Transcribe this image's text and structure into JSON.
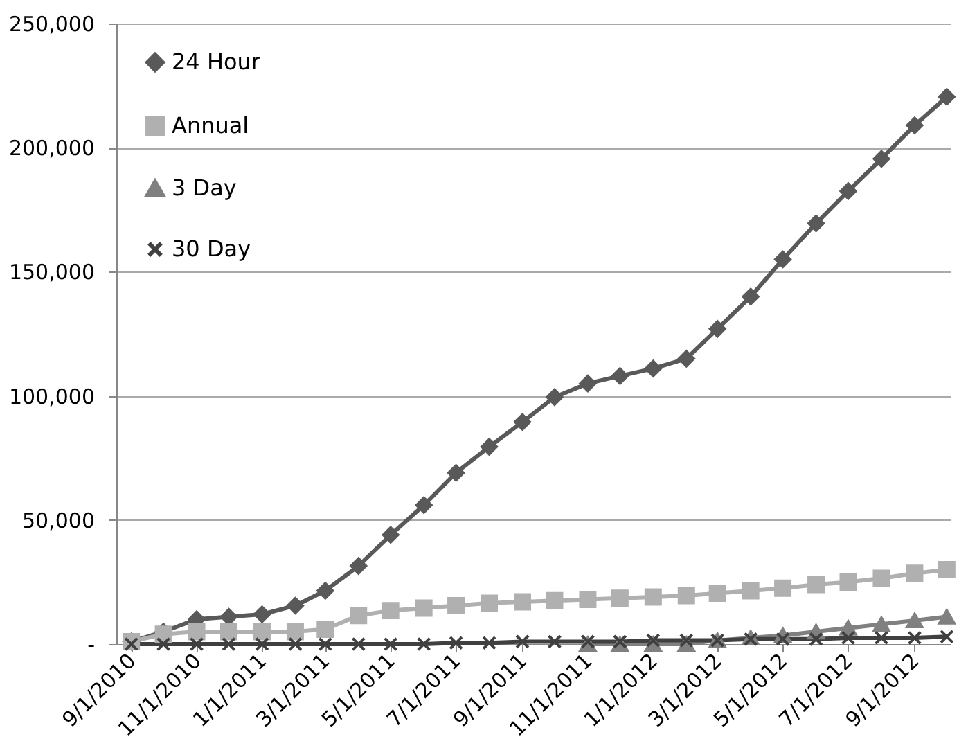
{
  "chart_data": {
    "type": "line",
    "x": [
      "2010-09",
      "2010-10",
      "2010-11",
      "2010-12",
      "2011-01",
      "2011-02",
      "2011-03",
      "2011-04",
      "2011-05",
      "2011-06",
      "2011-07",
      "2011-08",
      "2011-09",
      "2011-10",
      "2011-11",
      "2011-12",
      "2012-01",
      "2012-02",
      "2012-03",
      "2012-04",
      "2012-05",
      "2012-06",
      "2012-07",
      "2012-08",
      "2012-09",
      "2012-10"
    ],
    "series": [
      {
        "name": "24 Hour",
        "color": "#595959",
        "marker": "diamond",
        "values": [
          1000,
          5000,
          10000,
          11000,
          12000,
          15500,
          21500,
          31500,
          44000,
          56000,
          69000,
          79500,
          89500,
          99500,
          105000,
          108000,
          111000,
          115000,
          127000,
          140000,
          155000,
          169500,
          182500,
          195500,
          209000,
          220500
        ]
      },
      {
        "name": "Annual",
        "color": "#b0b0b0",
        "marker": "square",
        "values": [
          1000,
          4000,
          5000,
          5000,
          5000,
          5000,
          6000,
          11500,
          13500,
          14500,
          15500,
          16500,
          17000,
          17500,
          18000,
          18500,
          19000,
          19500,
          20500,
          21500,
          22500,
          24000,
          25000,
          26500,
          28500,
          30000
        ]
      },
      {
        "name": "3 Day",
        "color": "#808080",
        "marker": "triangle",
        "values": [
          null,
          null,
          null,
          null,
          null,
          null,
          null,
          null,
          null,
          null,
          null,
          null,
          null,
          null,
          0,
          0,
          0,
          0,
          1500,
          2500,
          3500,
          5000,
          6500,
          8000,
          9500,
          11000
        ]
      },
      {
        "name": "30 Day",
        "color": "#404040",
        "marker": "cross",
        "values": [
          0,
          0,
          0,
          0,
          0,
          0,
          0,
          0,
          0,
          0,
          500,
          500,
          1000,
          1000,
          1000,
          1000,
          1500,
          1500,
          1500,
          2000,
          2000,
          2000,
          2500,
          2500,
          2500,
          3000
        ]
      }
    ],
    "xlim": [
      "2010-08-18",
      "2012-10-04"
    ],
    "xticks": [
      {
        "value": "2010-09",
        "label": "9/1/2010"
      },
      {
        "value": "2010-11",
        "label": "11/1/2010"
      },
      {
        "value": "2011-01",
        "label": "1/1/2011"
      },
      {
        "value": "2011-03",
        "label": "3/1/2011"
      },
      {
        "value": "2011-05",
        "label": "5/1/2011"
      },
      {
        "value": "2011-07",
        "label": "7/1/2011"
      },
      {
        "value": "2011-09",
        "label": "9/1/2011"
      },
      {
        "value": "2011-11",
        "label": "11/1/2011"
      },
      {
        "value": "2012-01",
        "label": "1/1/2012"
      },
      {
        "value": "2012-03",
        "label": "3/1/2012"
      },
      {
        "value": "2012-05",
        "label": "5/1/2012"
      },
      {
        "value": "2012-07",
        "label": "7/1/2012"
      },
      {
        "value": "2012-09",
        "label": "9/1/2012"
      }
    ],
    "ylim": [
      0,
      250000
    ],
    "yticks": [
      {
        "value": 0,
        "label": "-"
      },
      {
        "value": 50000,
        "label": "50,000"
      },
      {
        "value": 100000,
        "label": "100,000"
      },
      {
        "value": 150000,
        "label": "150,000"
      },
      {
        "value": 200000,
        "label": "200,000"
      },
      {
        "value": 250000,
        "label": "250,000"
      }
    ],
    "grid": "y",
    "legend": "top left",
    "line_style": "solid"
  }
}
